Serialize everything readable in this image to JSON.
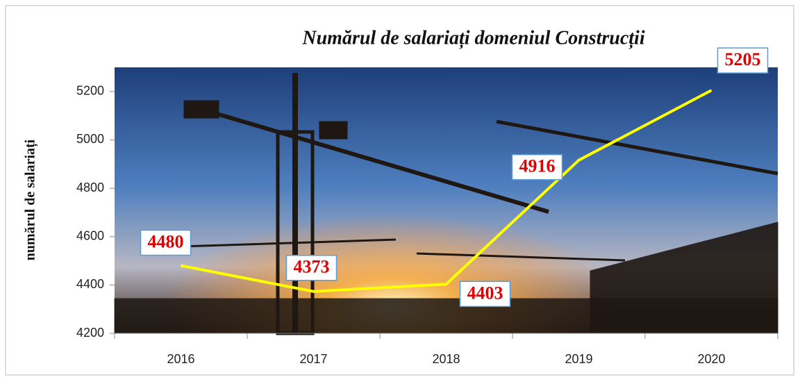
{
  "chart_data": {
    "type": "line",
    "title": "Numărul de salariați domeniul Construcții",
    "y_label": "numărul de salariați",
    "categories": [
      "2016",
      "2017",
      "2018",
      "2019",
      "2020"
    ],
    "values": [
      4480,
      4373,
      4403,
      4916,
      5205
    ],
    "color": "#ffff00",
    "ylim": [
      4200,
      5300
    ],
    "yticks": [
      4200,
      4400,
      4600,
      4800,
      5000,
      5200
    ]
  }
}
